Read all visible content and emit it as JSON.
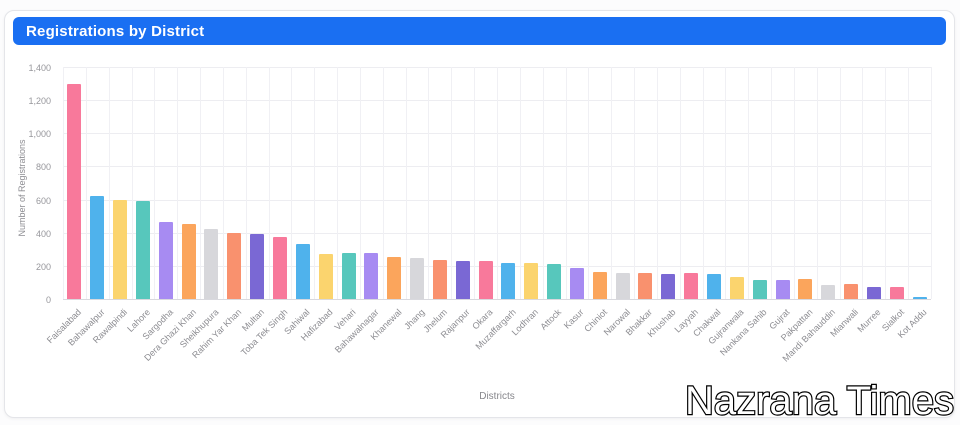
{
  "card": {
    "title": "Registrations by District",
    "header_color": "#1a6ff2"
  },
  "watermark": {
    "text": "Nazrana Times"
  },
  "chart_data": {
    "type": "bar",
    "title": "Registrations by District",
    "xlabel": "Districts",
    "ylabel": "Number of Registrations",
    "ylim": [
      0,
      1400
    ],
    "ytick_step": 200,
    "grid": true,
    "legend": "none",
    "categories": [
      "Faisalabad",
      "Bahawalpur",
      "Rawalpindi",
      "Lahore",
      "Sargodha",
      "Dera Ghazi Khan",
      "Sheikhupura",
      "Rahim Yar Khan",
      "Multan",
      "Toba Tek Singh",
      "Sahiwal",
      "Hafizabad",
      "Vehari",
      "Bahawalnagar",
      "Khanewal",
      "Jhang",
      "Jhelum",
      "Rajanpur",
      "Okara",
      "Muzaffargarh",
      "Lodhran",
      "Attock",
      "Kasur",
      "Chiniot",
      "Narowal",
      "Bhakkar",
      "Khushab",
      "Layyah",
      "Chakwal",
      "Gujranwala",
      "Nankana Sahib",
      "Gujrat",
      "Pakpattan",
      "Mandi Bahauddin",
      "Mianwali",
      "Murree",
      "Sialkot",
      "Kot Addu"
    ],
    "values": [
      1300,
      620,
      600,
      590,
      465,
      450,
      425,
      400,
      390,
      375,
      330,
      270,
      275,
      280,
      255,
      245,
      235,
      230,
      230,
      215,
      215,
      210,
      185,
      165,
      155,
      160,
      150,
      155,
      150,
      130,
      115,
      115,
      120,
      85,
      90,
      75,
      70,
      10
    ],
    "bar_palette": [
      "#F8799B",
      "#4FB2EC",
      "#FBD46E",
      "#57C7BC",
      "#A78BF2",
      "#FBA55C",
      "#D7D7DB",
      "#F9916E",
      "#7A68D4"
    ]
  }
}
